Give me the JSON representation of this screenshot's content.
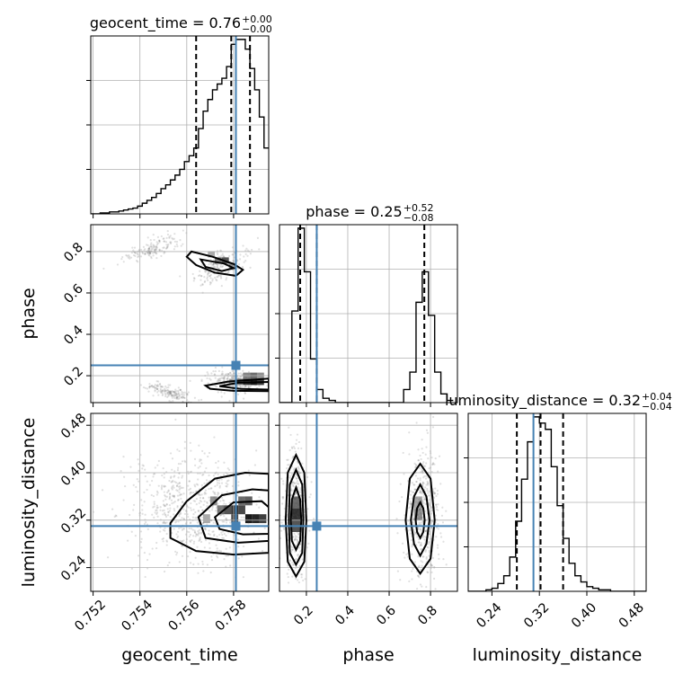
{
  "chart_data": {
    "type": "corner",
    "truth_color": "#4682b4",
    "parameters": [
      {
        "name": "geocent_time",
        "label": "geocent_time",
        "range": [
          0.7519,
          0.7595
        ],
        "ticks": [
          "0.752",
          "0.754",
          "0.756",
          "0.758"
        ],
        "tick_values": [
          0.752,
          0.754,
          0.756,
          0.758
        ],
        "truth": 0.7581
      },
      {
        "name": "phase",
        "label": "phase",
        "range": [
          0.07,
          0.93
        ],
        "ticks": [
          "0.2",
          "0.4",
          "0.6",
          "0.8"
        ],
        "tick_values": [
          0.2,
          0.4,
          0.6,
          0.8
        ],
        "truth": 0.25
      },
      {
        "name": "luminosity_distance",
        "label": "luminosity_distance",
        "range": [
          0.2,
          0.5
        ],
        "ticks": [
          "0.24",
          "0.32",
          "0.40",
          "0.48"
        ],
        "tick_values": [
          0.24,
          0.32,
          0.4,
          0.48
        ],
        "truth": 0.31
      }
    ],
    "histograms": [
      {
        "parameter": "geocent_time",
        "title_main": "geocent_time = 0.76",
        "title_sup": "+0.00",
        "title_sub": "−0.00",
        "quantiles": [
          0.7564,
          0.7579,
          0.7587
        ],
        "bin_edges": [
          0.7519,
          0.7521,
          0.7523,
          0.7525,
          0.7527,
          0.7529,
          0.7531,
          0.7533,
          0.7535,
          0.7537,
          0.7539,
          0.7541,
          0.7543,
          0.7545,
          0.7547,
          0.7549,
          0.7551,
          0.7553,
          0.7555,
          0.7557,
          0.7559,
          0.7561,
          0.7563,
          0.7565,
          0.7567,
          0.7569,
          0.7571,
          0.7573,
          0.7575,
          0.7577,
          0.7579,
          0.7581,
          0.7583,
          0.7585,
          0.7587,
          0.7589,
          0.7591,
          0.7593,
          0.7595
        ],
        "counts": [
          0,
          0,
          1,
          1,
          2,
          2,
          3,
          4,
          5,
          6,
          8,
          11,
          14,
          17,
          21,
          26,
          30,
          35,
          40,
          46,
          54,
          60,
          68,
          88,
          106,
          118,
          128,
          134,
          140,
          152,
          175,
          180,
          180,
          170,
          150,
          128,
          100,
          68
        ]
      },
      {
        "parameter": "phase",
        "title_main": "phase = 0.25",
        "title_sup": "+0.52",
        "title_sub": "−0.08",
        "quantiles": [
          0.17,
          0.25,
          0.77
        ],
        "bin_edges": [
          0.07,
          0.1,
          0.13,
          0.16,
          0.19,
          0.22,
          0.25,
          0.28,
          0.31,
          0.34,
          0.37,
          0.4,
          0.43,
          0.46,
          0.49,
          0.52,
          0.55,
          0.58,
          0.61,
          0.64,
          0.67,
          0.7,
          0.73,
          0.76,
          0.79,
          0.82,
          0.85,
          0.88,
          0.91
        ],
        "counts": [
          0,
          0,
          42,
          80,
          60,
          20,
          6,
          2,
          1,
          0,
          0,
          0,
          0,
          0,
          0,
          0,
          0,
          0,
          0,
          0,
          6,
          14,
          46,
          60,
          40,
          14,
          4,
          1
        ]
      },
      {
        "parameter": "luminosity_distance",
        "title_main": "luminosity_distance = 0.32",
        "title_sup": "+0.04",
        "title_sub": "−0.04",
        "quantiles": [
          0.282,
          0.322,
          0.36
        ],
        "bin_edges": [
          0.2,
          0.21,
          0.22,
          0.23,
          0.24,
          0.25,
          0.26,
          0.27,
          0.28,
          0.29,
          0.3,
          0.31,
          0.32,
          0.33,
          0.34,
          0.35,
          0.36,
          0.37,
          0.38,
          0.39,
          0.4,
          0.41,
          0.42,
          0.43,
          0.44,
          0.45,
          0.46,
          0.47,
          0.48,
          0.49,
          0.5
        ],
        "counts": [
          0,
          0,
          0,
          1,
          2,
          5,
          10,
          22,
          45,
          72,
          96,
          112,
          108,
          104,
          80,
          55,
          34,
          18,
          10,
          6,
          3,
          2,
          1,
          1,
          0,
          0,
          0,
          0,
          0,
          0
        ]
      }
    ],
    "joint_panels": [
      {
        "x": "geocent_time",
        "y": "phase",
        "density": [
          {
            "x": 0.7572,
            "y": 0.742,
            "w": 0.0003,
            "h": 0.03,
            "level": 0.55
          },
          {
            "x": 0.7575,
            "y": 0.742,
            "w": 0.0003,
            "h": 0.03,
            "level": 0.7
          },
          {
            "x": 0.7578,
            "y": 0.712,
            "w": 0.0003,
            "h": 0.03,
            "level": 0.45
          },
          {
            "x": 0.7569,
            "y": 0.772,
            "w": 0.0003,
            "h": 0.03,
            "level": 0.35
          },
          {
            "x": 0.7584,
            "y": 0.155,
            "w": 0.0003,
            "h": 0.03,
            "level": 0.85
          },
          {
            "x": 0.7587,
            "y": 0.155,
            "w": 0.0003,
            "h": 0.03,
            "level": 0.95
          },
          {
            "x": 0.759,
            "y": 0.155,
            "w": 0.0003,
            "h": 0.03,
            "level": 0.8
          },
          {
            "x": 0.7584,
            "y": 0.185,
            "w": 0.0003,
            "h": 0.03,
            "level": 0.5
          },
          {
            "x": 0.7587,
            "y": 0.185,
            "w": 0.0003,
            "h": 0.03,
            "level": 0.6
          },
          {
            "x": 0.759,
            "y": 0.185,
            "w": 0.0003,
            "h": 0.03,
            "level": 0.45
          },
          {
            "x": 0.7578,
            "y": 0.155,
            "w": 0.0003,
            "h": 0.03,
            "level": 0.35
          },
          {
            "x": 0.7581,
            "y": 0.155,
            "w": 0.0003,
            "h": 0.03,
            "level": 0.55
          }
        ],
        "contours": [
          [
            [
              0.7562,
              0.8
            ],
            [
              0.7571,
              0.775
            ],
            [
              0.758,
              0.74
            ],
            [
              0.7584,
              0.712
            ],
            [
              0.7581,
              0.683
            ],
            [
              0.7572,
              0.698
            ],
            [
              0.7564,
              0.735
            ],
            [
              0.756,
              0.775
            ],
            [
              0.7562,
              0.8
            ]
          ],
          [
            [
              0.7566,
              0.762
            ],
            [
              0.7576,
              0.742
            ],
            [
              0.758,
              0.72
            ],
            [
              0.7575,
              0.706
            ],
            [
              0.7568,
              0.726
            ],
            [
              0.7566,
              0.762
            ]
          ],
          [
            [
              0.7568,
              0.152
            ],
            [
              0.7578,
              0.172
            ],
            [
              0.7595,
              0.186
            ],
            [
              0.7595,
              0.125
            ],
            [
              0.758,
              0.127
            ],
            [
              0.757,
              0.137
            ],
            [
              0.7568,
              0.152
            ]
          ],
          [
            [
              0.7574,
              0.149
            ],
            [
              0.7582,
              0.166
            ],
            [
              0.7595,
              0.17
            ],
            [
              0.7595,
              0.133
            ],
            [
              0.7583,
              0.136
            ],
            [
              0.7574,
              0.149
            ]
          ]
        ],
        "scatter_regions": [
          {
            "x": [
              0.753,
              0.756
            ],
            "y": [
              0.76,
              0.86
            ],
            "tilt": -20,
            "n": 160
          },
          {
            "x": [
              0.756,
              0.759
            ],
            "y": [
              0.66,
              0.8
            ],
            "tilt": -24,
            "n": 200
          },
          {
            "x": [
              0.754,
              0.7565
            ],
            "y": [
              0.08,
              0.16
            ],
            "tilt": 14,
            "n": 160
          },
          {
            "x": [
              0.7565,
              0.7595
            ],
            "y": [
              0.1,
              0.24
            ],
            "tilt": 12,
            "n": 220
          }
        ]
      },
      {
        "x": "geocent_time",
        "y": "luminosity_distance",
        "density": [
          {
            "x": 0.7573,
            "y": 0.33,
            "w": 0.0003,
            "h": 0.015,
            "level": 0.55
          },
          {
            "x": 0.7576,
            "y": 0.33,
            "w": 0.0003,
            "h": 0.015,
            "level": 0.7
          },
          {
            "x": 0.7579,
            "y": 0.33,
            "w": 0.0003,
            "h": 0.015,
            "level": 0.85
          },
          {
            "x": 0.7582,
            "y": 0.33,
            "w": 0.0003,
            "h": 0.015,
            "level": 0.75
          },
          {
            "x": 0.7585,
            "y": 0.315,
            "w": 0.0003,
            "h": 0.015,
            "level": 0.95
          },
          {
            "x": 0.7588,
            "y": 0.315,
            "w": 0.0003,
            "h": 0.015,
            "level": 0.9
          },
          {
            "x": 0.7591,
            "y": 0.315,
            "w": 0.0003,
            "h": 0.015,
            "level": 0.8
          },
          {
            "x": 0.7579,
            "y": 0.315,
            "w": 0.0003,
            "h": 0.015,
            "level": 0.75
          },
          {
            "x": 0.7582,
            "y": 0.345,
            "w": 0.0003,
            "h": 0.015,
            "level": 0.6
          },
          {
            "x": 0.7585,
            "y": 0.345,
            "w": 0.0003,
            "h": 0.015,
            "level": 0.65
          },
          {
            "x": 0.757,
            "y": 0.345,
            "w": 0.0003,
            "h": 0.015,
            "level": 0.45
          },
          {
            "x": 0.7567,
            "y": 0.315,
            "w": 0.0003,
            "h": 0.015,
            "level": 0.35
          }
        ],
        "contours": [
          [
            [
              0.7553,
              0.315
            ],
            [
              0.756,
              0.352
            ],
            [
              0.7572,
              0.39
            ],
            [
              0.7585,
              0.4
            ],
            [
              0.7595,
              0.398
            ],
            [
              0.7595,
              0.265
            ],
            [
              0.758,
              0.262
            ],
            [
              0.7564,
              0.268
            ],
            [
              0.7553,
              0.29
            ],
            [
              0.7553,
              0.315
            ]
          ],
          [
            [
              0.7565,
              0.325
            ],
            [
              0.7575,
              0.362
            ],
            [
              0.7588,
              0.372
            ],
            [
              0.7595,
              0.37
            ],
            [
              0.7595,
              0.285
            ],
            [
              0.7582,
              0.282
            ],
            [
              0.7568,
              0.29
            ],
            [
              0.7565,
              0.325
            ]
          ],
          [
            [
              0.7572,
              0.325
            ],
            [
              0.758,
              0.35
            ],
            [
              0.7592,
              0.352
            ],
            [
              0.7595,
              0.342
            ],
            [
              0.7595,
              0.297
            ],
            [
              0.7584,
              0.296
            ],
            [
              0.7574,
              0.305
            ],
            [
              0.7572,
              0.325
            ]
          ]
        ],
        "scatter_regions": [
          {
            "x": [
              0.753,
              0.7595
            ],
            "y": [
              0.23,
              0.45
            ],
            "tilt": 0,
            "n": 700
          }
        ]
      },
      {
        "x": "phase",
        "y": "luminosity_distance",
        "density": [
          {
            "x": 0.13,
            "y": 0.32,
            "w": 0.04,
            "h": 0.02,
            "level": 0.85
          },
          {
            "x": 0.13,
            "y": 0.3,
            "w": 0.04,
            "h": 0.02,
            "level": 0.7
          },
          {
            "x": 0.13,
            "y": 0.34,
            "w": 0.04,
            "h": 0.02,
            "level": 0.6
          },
          {
            "x": 0.72,
            "y": 0.32,
            "w": 0.04,
            "h": 0.02,
            "level": 0.45
          },
          {
            "x": 0.72,
            "y": 0.34,
            "w": 0.04,
            "h": 0.02,
            "level": 0.35
          }
        ],
        "contours": [
          [
            [
              0.15,
              0.43
            ],
            [
              0.19,
              0.4
            ],
            [
              0.2,
              0.32
            ],
            [
              0.19,
              0.25
            ],
            [
              0.15,
              0.225
            ],
            [
              0.11,
              0.25
            ],
            [
              0.1,
              0.32
            ],
            [
              0.11,
              0.4
            ],
            [
              0.15,
              0.43
            ]
          ],
          [
            [
              0.15,
              0.405
            ],
            [
              0.18,
              0.38
            ],
            [
              0.185,
              0.32
            ],
            [
              0.18,
              0.265
            ],
            [
              0.15,
              0.245
            ],
            [
              0.12,
              0.265
            ],
            [
              0.115,
              0.32
            ],
            [
              0.12,
              0.38
            ],
            [
              0.15,
              0.405
            ]
          ],
          [
            [
              0.15,
              0.375
            ],
            [
              0.17,
              0.355
            ],
            [
              0.175,
              0.32
            ],
            [
              0.17,
              0.285
            ],
            [
              0.15,
              0.27
            ],
            [
              0.13,
              0.285
            ],
            [
              0.125,
              0.32
            ],
            [
              0.13,
              0.355
            ],
            [
              0.15,
              0.375
            ]
          ],
          [
            [
              0.75,
              0.415
            ],
            [
              0.8,
              0.39
            ],
            [
              0.82,
              0.32
            ],
            [
              0.8,
              0.255
            ],
            [
              0.75,
              0.23
            ],
            [
              0.7,
              0.255
            ],
            [
              0.68,
              0.32
            ],
            [
              0.7,
              0.39
            ],
            [
              0.75,
              0.415
            ]
          ],
          [
            [
              0.75,
              0.38
            ],
            [
              0.78,
              0.36
            ],
            [
              0.795,
              0.32
            ],
            [
              0.78,
              0.28
            ],
            [
              0.75,
              0.26
            ],
            [
              0.72,
              0.28
            ],
            [
              0.705,
              0.32
            ],
            [
              0.72,
              0.36
            ],
            [
              0.75,
              0.38
            ]
          ],
          [
            [
              0.75,
              0.35
            ],
            [
              0.765,
              0.34
            ],
            [
              0.772,
              0.32
            ],
            [
              0.765,
              0.3
            ],
            [
              0.75,
              0.29
            ],
            [
              0.735,
              0.3
            ],
            [
              0.728,
              0.32
            ],
            [
              0.735,
              0.34
            ],
            [
              0.75,
              0.35
            ]
          ]
        ],
        "scatter_regions": [
          {
            "x": [
              0.08,
              0.22
            ],
            "y": [
              0.2,
              0.46
            ],
            "tilt": 0,
            "n": 450
          },
          {
            "x": [
              0.66,
              0.86
            ],
            "y": [
              0.2,
              0.46
            ],
            "tilt": 0,
            "n": 450
          }
        ]
      }
    ]
  }
}
